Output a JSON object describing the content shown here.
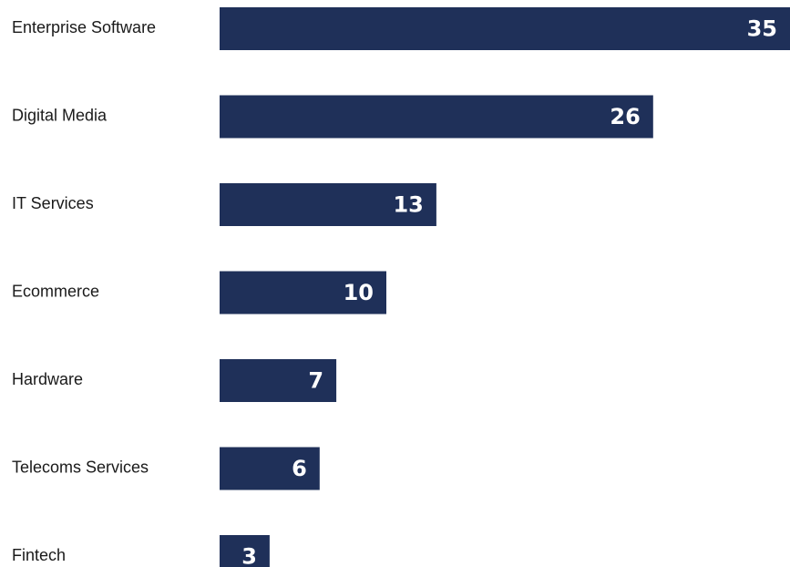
{
  "chart_data": {
    "type": "bar",
    "orientation": "horizontal",
    "categories": [
      "Enterprise Software",
      "Digital Media",
      "IT Services",
      "Ecommerce",
      "Hardware",
      "Telecoms Services",
      "Fintech"
    ],
    "values": [
      35,
      26,
      13,
      10,
      7,
      6,
      3
    ],
    "title": "",
    "xlabel": "",
    "ylabel": "",
    "xlim": [
      0,
      35
    ],
    "grid": false,
    "legend": "none",
    "bar_color": "#1f3059",
    "label_color": "#ffffff",
    "text_color": "#1a1a1a"
  }
}
